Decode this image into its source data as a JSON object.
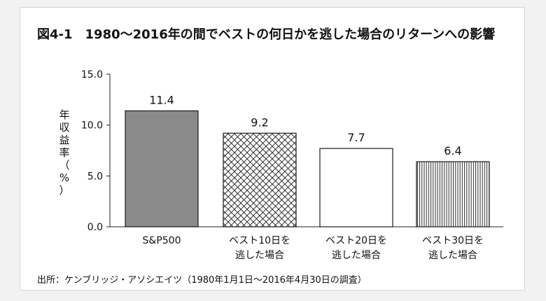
{
  "chart_data": {
    "type": "bar",
    "title": "図4-1　1980～2016年の間でベストの何日かを逃した場合のリターンへの影響",
    "ylabel": "年収益率（%）",
    "ylim": [
      0,
      15
    ],
    "yticks": [
      "0.0",
      "5.0",
      "10.0",
      "15.0"
    ],
    "grid": false,
    "categories": [
      [
        "S&P500"
      ],
      [
        "ベスト10日を",
        "逃した場合"
      ],
      [
        "ベスト20日を",
        "逃した場合"
      ],
      [
        "ベスト30日を",
        "逃した場合"
      ]
    ],
    "values": [
      11.4,
      9.2,
      7.7,
      6.4
    ],
    "value_labels": [
      "11.4",
      "9.2",
      "7.7",
      "6.4"
    ],
    "bar_styles": [
      "solid-gray",
      "crosshatch",
      "empty",
      "vertical-lines"
    ],
    "colors": {
      "solid_fill": "#8a8a8a",
      "stroke": "#1a1a1a"
    },
    "source": "出所：ケンブリッジ・アソシエイツ（1980年1月1日～2016年4月30日の調査）"
  }
}
